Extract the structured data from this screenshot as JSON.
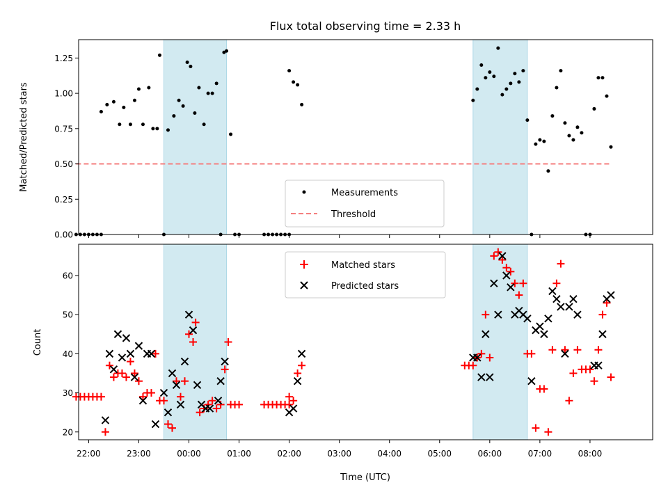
{
  "chart_data": [
    {
      "type": "scatter",
      "title": "Flux total observing time = 2.33 h",
      "xlabel": "",
      "ylabel": "Matched/Predicted stars",
      "ylim": [
        0,
        1.38
      ],
      "yticks": [
        "0.00",
        "0.25",
        "0.50",
        "0.75",
        "1.00",
        "1.25"
      ],
      "legend": {
        "position": "lower-center",
        "entries": [
          "Measurements",
          "Threshold"
        ]
      },
      "shaded_spans": [
        [
          "23:30",
          "00:45"
        ],
        [
          "05:40",
          "06:45"
        ]
      ],
      "threshold": {
        "value": 0.5,
        "x_start": "21:45",
        "x_end": "08:25",
        "color": "#f47f7f"
      },
      "series": [
        {
          "name": "Measurements",
          "color": "#000000",
          "points": [
            [
              "21:45",
              0.0
            ],
            [
              "21:50",
              0.0
            ],
            [
              "21:55",
              0.0
            ],
            [
              "22:00",
              0.0
            ],
            [
              "22:05",
              0.0
            ],
            [
              "22:10",
              0.0
            ],
            [
              "22:15",
              0.0
            ],
            [
              "22:15",
              0.87
            ],
            [
              "22:22",
              0.92
            ],
            [
              "22:30",
              0.94
            ],
            [
              "22:37",
              0.78
            ],
            [
              "22:42",
              0.9
            ],
            [
              "22:50",
              0.78
            ],
            [
              "22:55",
              0.95
            ],
            [
              "23:00",
              1.03
            ],
            [
              "23:05",
              0.78
            ],
            [
              "23:12",
              1.04
            ],
            [
              "23:17",
              0.75
            ],
            [
              "23:22",
              0.75
            ],
            [
              "23:25",
              1.27
            ],
            [
              "23:30",
              0.0
            ],
            [
              "23:35",
              0.74
            ],
            [
              "23:42",
              0.84
            ],
            [
              "23:48",
              0.95
            ],
            [
              "23:53",
              0.91
            ],
            [
              "23:58",
              1.22
            ],
            [
              "00:02",
              1.19
            ],
            [
              "00:07",
              0.86
            ],
            [
              "00:12",
              1.04
            ],
            [
              "00:18",
              0.78
            ],
            [
              "00:23",
              1.0
            ],
            [
              "00:28",
              1.0
            ],
            [
              "00:33",
              1.07
            ],
            [
              "00:38",
              0.0
            ],
            [
              "00:42",
              1.29
            ],
            [
              "00:45",
              1.3
            ],
            [
              "00:50",
              0.71
            ],
            [
              "00:55",
              0.0
            ],
            [
              "01:00",
              0.0
            ],
            [
              "01:30",
              0.0
            ],
            [
              "01:35",
              0.0
            ],
            [
              "01:40",
              0.0
            ],
            [
              "01:45",
              0.0
            ],
            [
              "01:50",
              0.0
            ],
            [
              "01:55",
              0.0
            ],
            [
              "02:00",
              0.0
            ],
            [
              "02:00",
              1.16
            ],
            [
              "02:05",
              1.08
            ],
            [
              "02:10",
              1.06
            ],
            [
              "02:15",
              0.92
            ],
            [
              "05:40",
              0.95
            ],
            [
              "05:45",
              1.03
            ],
            [
              "05:50",
              1.2
            ],
            [
              "05:55",
              1.11
            ],
            [
              "06:00",
              1.15
            ],
            [
              "06:05",
              1.12
            ],
            [
              "06:10",
              1.32
            ],
            [
              "06:15",
              0.99
            ],
            [
              "06:20",
              1.03
            ],
            [
              "06:25",
              1.07
            ],
            [
              "06:30",
              1.14
            ],
            [
              "06:35",
              1.08
            ],
            [
              "06:40",
              1.16
            ],
            [
              "06:45",
              0.81
            ],
            [
              "06:50",
              0.0
            ],
            [
              "06:55",
              0.64
            ],
            [
              "07:00",
              0.67
            ],
            [
              "07:05",
              0.66
            ],
            [
              "07:10",
              0.45
            ],
            [
              "07:15",
              0.84
            ],
            [
              "07:20",
              1.04
            ],
            [
              "07:25",
              1.16
            ],
            [
              "07:30",
              0.79
            ],
            [
              "07:35",
              0.7
            ],
            [
              "07:40",
              0.67
            ],
            [
              "07:45",
              0.76
            ],
            [
              "07:50",
              0.72
            ],
            [
              "07:55",
              0.0
            ],
            [
              "08:00",
              0.0
            ],
            [
              "08:05",
              0.89
            ],
            [
              "08:10",
              1.11
            ],
            [
              "08:15",
              1.11
            ],
            [
              "08:20",
              0.98
            ],
            [
              "08:25",
              0.62
            ]
          ]
        }
      ]
    },
    {
      "type": "scatter",
      "title": "",
      "xlabel": "Time (UTC)",
      "ylabel": "Count",
      "ylim": [
        18,
        68
      ],
      "yticks": [
        "20",
        "30",
        "40",
        "50",
        "60"
      ],
      "xticks": [
        "22:00",
        "23:00",
        "00:00",
        "01:00",
        "02:00",
        "03:00",
        "04:00",
        "05:00",
        "06:00",
        "07:00",
        "08:00"
      ],
      "legend": {
        "position": "upper-center",
        "entries": [
          "Matched stars",
          "Predicted stars"
        ]
      },
      "shaded_spans": [
        [
          "23:30",
          "00:45"
        ],
        [
          "05:40",
          "06:45"
        ]
      ],
      "series": [
        {
          "name": "Matched stars",
          "marker": "+",
          "color": "#ff0000",
          "points": [
            [
              "21:45",
              29
            ],
            [
              "21:50",
              29
            ],
            [
              "21:55",
              29
            ],
            [
              "22:00",
              29
            ],
            [
              "22:05",
              29
            ],
            [
              "22:10",
              29
            ],
            [
              "22:15",
              29
            ],
            [
              "22:20",
              20
            ],
            [
              "22:25",
              37
            ],
            [
              "22:30",
              34
            ],
            [
              "22:35",
              35
            ],
            [
              "22:40",
              35
            ],
            [
              "22:45",
              34
            ],
            [
              "22:50",
              38
            ],
            [
              "22:55",
              35
            ],
            [
              "23:00",
              33
            ],
            [
              "23:05",
              29
            ],
            [
              "23:10",
              30
            ],
            [
              "23:15",
              30
            ],
            [
              "23:20",
              40
            ],
            [
              "23:25",
              28
            ],
            [
              "23:30",
              28
            ],
            [
              "23:35",
              22
            ],
            [
              "23:40",
              21
            ],
            [
              "23:45",
              33
            ],
            [
              "23:50",
              29
            ],
            [
              "23:55",
              33
            ],
            [
              "00:00",
              45
            ],
            [
              "00:05",
              43
            ],
            [
              "00:08",
              48
            ],
            [
              "00:13",
              25
            ],
            [
              "00:18",
              26
            ],
            [
              "00:23",
              27
            ],
            [
              "00:28",
              28
            ],
            [
              "00:33",
              26
            ],
            [
              "00:38",
              27
            ],
            [
              "00:43",
              36
            ],
            [
              "00:47",
              43
            ],
            [
              "00:50",
              27
            ],
            [
              "00:55",
              27
            ],
            [
              "01:00",
              27
            ],
            [
              "01:30",
              27
            ],
            [
              "01:35",
              27
            ],
            [
              "01:40",
              27
            ],
            [
              "01:45",
              27
            ],
            [
              "01:50",
              27
            ],
            [
              "01:55",
              27
            ],
            [
              "02:00",
              27
            ],
            [
              "02:00",
              29
            ],
            [
              "02:05",
              28
            ],
            [
              "02:10",
              35
            ],
            [
              "02:15",
              37
            ],
            [
              "05:30",
              37
            ],
            [
              "05:35",
              37
            ],
            [
              "05:40",
              37
            ],
            [
              "05:45",
              39
            ],
            [
              "05:50",
              40
            ],
            [
              "05:55",
              50
            ],
            [
              "06:00",
              39
            ],
            [
              "06:05",
              65
            ],
            [
              "06:10",
              66
            ],
            [
              "06:15",
              64
            ],
            [
              "06:20",
              62
            ],
            [
              "06:25",
              61
            ],
            [
              "06:30",
              58
            ],
            [
              "06:35",
              55
            ],
            [
              "06:40",
              58
            ],
            [
              "06:45",
              40
            ],
            [
              "06:50",
              40
            ],
            [
              "06:55",
              21
            ],
            [
              "07:00",
              31
            ],
            [
              "07:05",
              31
            ],
            [
              "07:10",
              20
            ],
            [
              "07:15",
              41
            ],
            [
              "07:20",
              58
            ],
            [
              "07:25",
              63
            ],
            [
              "07:30",
              41
            ],
            [
              "07:35",
              28
            ],
            [
              "07:40",
              35
            ],
            [
              "07:45",
              41
            ],
            [
              "07:50",
              36
            ],
            [
              "07:55",
              36
            ],
            [
              "08:00",
              36
            ],
            [
              "08:05",
              33
            ],
            [
              "08:10",
              41
            ],
            [
              "08:15",
              50
            ],
            [
              "08:20",
              53
            ],
            [
              "08:25",
              34
            ]
          ]
        },
        {
          "name": "Predicted stars",
          "marker": "x",
          "color": "#000000",
          "points": [
            [
              "22:20",
              23
            ],
            [
              "22:25",
              40
            ],
            [
              "22:30",
              36
            ],
            [
              "22:35",
              45
            ],
            [
              "22:40",
              39
            ],
            [
              "22:45",
              44
            ],
            [
              "22:50",
              40
            ],
            [
              "22:55",
              34
            ],
            [
              "23:00",
              42
            ],
            [
              "23:05",
              28
            ],
            [
              "23:10",
              40
            ],
            [
              "23:15",
              40
            ],
            [
              "23:20",
              22
            ],
            [
              "23:30",
              30
            ],
            [
              "23:35",
              25
            ],
            [
              "23:40",
              35
            ],
            [
              "23:45",
              32
            ],
            [
              "23:50",
              27
            ],
            [
              "23:55",
              38
            ],
            [
              "00:00",
              50
            ],
            [
              "00:05",
              46
            ],
            [
              "00:10",
              32
            ],
            [
              "00:15",
              27
            ],
            [
              "00:20",
              26
            ],
            [
              "00:25",
              26
            ],
            [
              "00:35",
              28
            ],
            [
              "00:38",
              33
            ],
            [
              "00:43",
              38
            ],
            [
              "02:00",
              25
            ],
            [
              "02:05",
              26
            ],
            [
              "02:10",
              33
            ],
            [
              "02:15",
              40
            ],
            [
              "05:40",
              39
            ],
            [
              "05:45",
              39
            ],
            [
              "05:50",
              34
            ],
            [
              "05:55",
              45
            ],
            [
              "06:00",
              34
            ],
            [
              "06:05",
              58
            ],
            [
              "06:10",
              50
            ],
            [
              "06:15",
              65
            ],
            [
              "06:20",
              60
            ],
            [
              "06:25",
              57
            ],
            [
              "06:30",
              50
            ],
            [
              "06:35",
              51
            ],
            [
              "06:40",
              50
            ],
            [
              "06:45",
              49
            ],
            [
              "06:50",
              33
            ],
            [
              "06:55",
              46
            ],
            [
              "07:00",
              47
            ],
            [
              "07:05",
              45
            ],
            [
              "07:10",
              49
            ],
            [
              "07:15",
              56
            ],
            [
              "07:20",
              54
            ],
            [
              "07:25",
              52
            ],
            [
              "07:30",
              40
            ],
            [
              "07:35",
              52
            ],
            [
              "07:40",
              54
            ],
            [
              "07:45",
              50
            ],
            [
              "08:05",
              37
            ],
            [
              "08:10",
              37
            ],
            [
              "08:15",
              45
            ],
            [
              "08:20",
              54
            ],
            [
              "08:25",
              55
            ]
          ]
        }
      ]
    }
  ],
  "colors": {
    "shade": "#add8e6",
    "threshold": "#f47f7f",
    "matched": "#ff0000",
    "predicted": "#000000"
  }
}
